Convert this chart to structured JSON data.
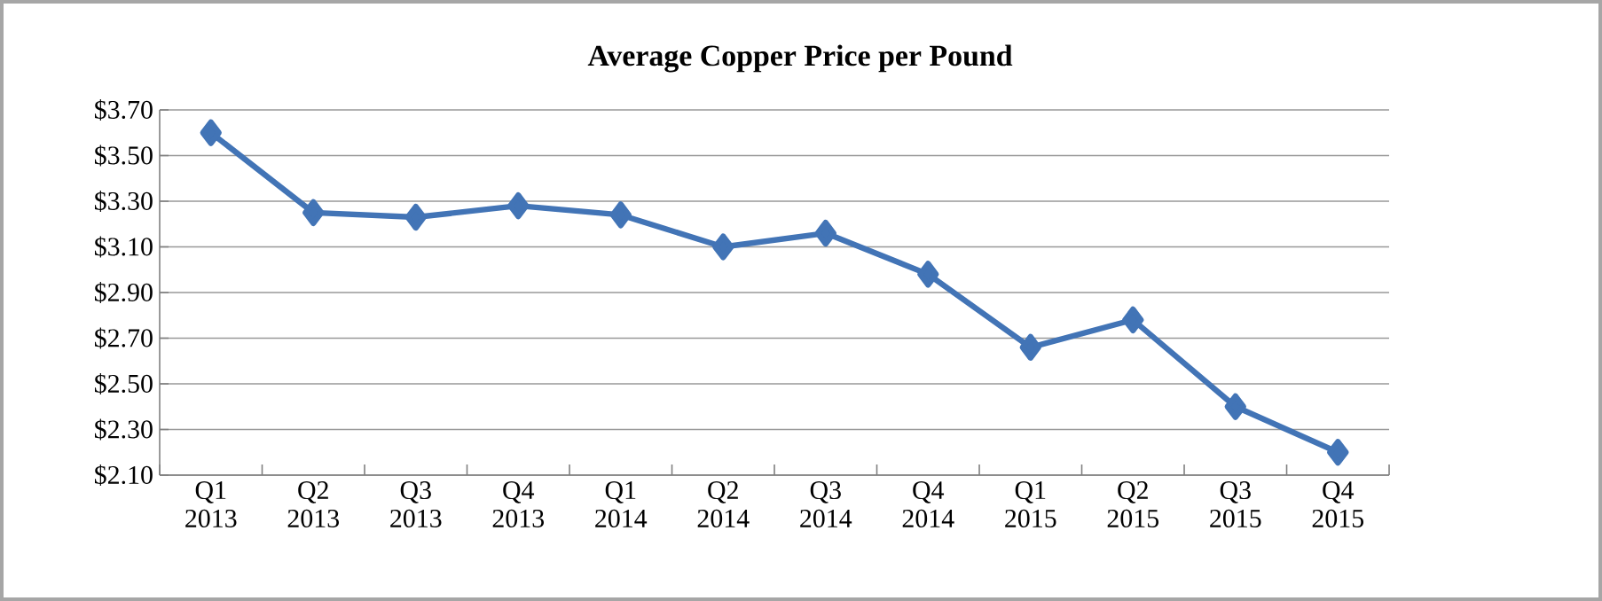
{
  "chart_data": {
    "type": "line",
    "title": "Average Copper Price per Pound",
    "categories": [
      "Q1 2013",
      "Q2 2013",
      "Q3 2013",
      "Q4 2013",
      "Q1 2014",
      "Q2 2014",
      "Q3 2014",
      "Q4 2014",
      "Q1 2015",
      "Q2 2015",
      "Q3 2015",
      "Q4 2015"
    ],
    "series": [
      {
        "color": "#4274b6",
        "values": [
          3.6,
          3.25,
          3.23,
          3.28,
          3.24,
          3.1,
          3.16,
          2.98,
          2.66,
          2.78,
          2.4,
          2.2
        ]
      }
    ],
    "ylim": [
      2.1,
      3.7
    ],
    "yticks": [
      {
        "value": 2.1,
        "label": "$2.10"
      },
      {
        "value": 2.3,
        "label": "$2.30"
      },
      {
        "value": 2.5,
        "label": "$2.50"
      },
      {
        "value": 2.7,
        "label": "$2.70"
      },
      {
        "value": 2.9,
        "label": "$2.90"
      },
      {
        "value": 3.1,
        "label": "$3.10"
      },
      {
        "value": 3.3,
        "label": "$3.30"
      },
      {
        "value": 3.5,
        "label": "$3.50"
      },
      {
        "value": 3.7,
        "label": "$3.70"
      }
    ],
    "grid": "y",
    "marker": "diamond",
    "line_style": "solid"
  }
}
